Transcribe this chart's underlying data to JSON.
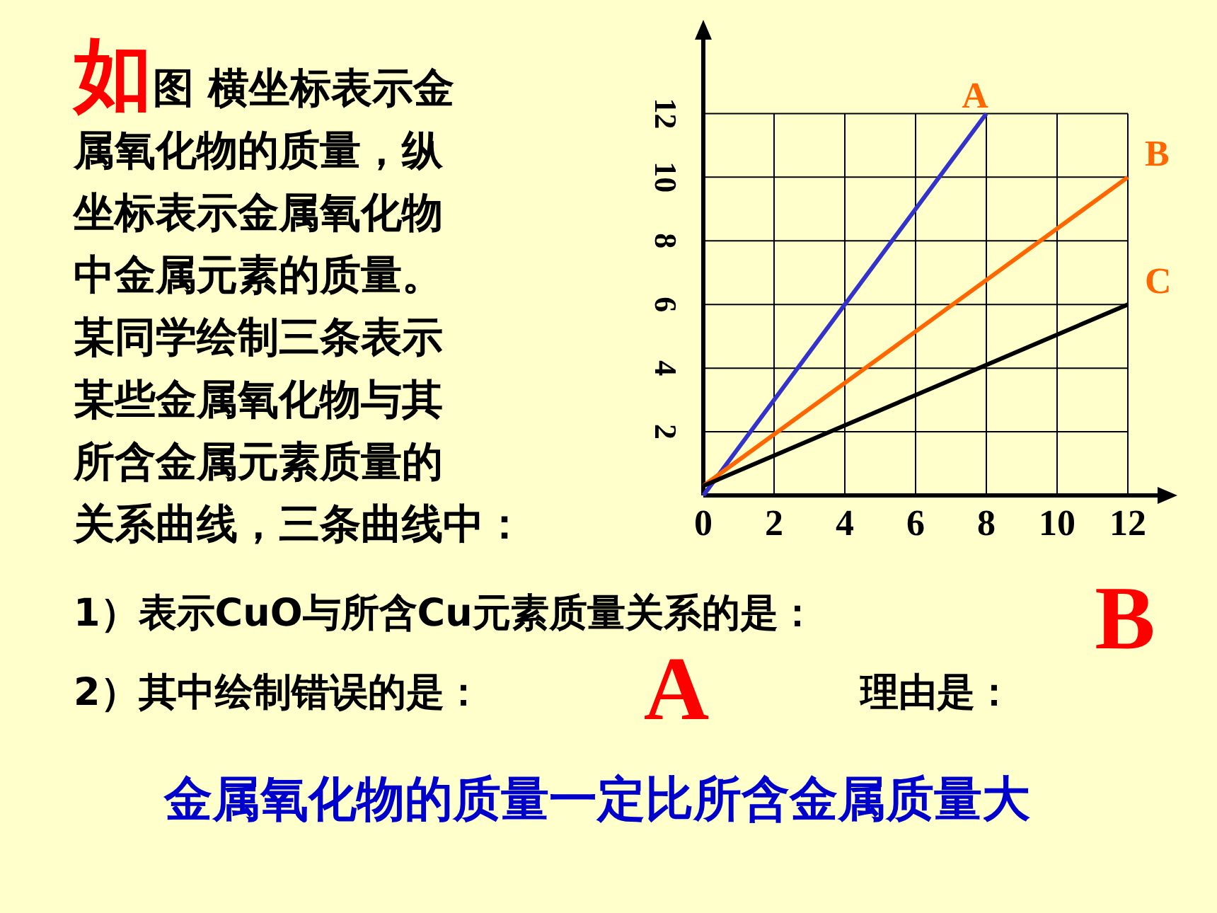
{
  "chart_data": {
    "type": "line",
    "annotations": [
      "如图 横坐标表示金属氧化物的质量，纵坐标表示金属氧化物中金属元素的质量。某同学绘制三条表示某些金属氧化物与其所含金属元素质量的关系曲线，三条曲线中：",
      "1）表示CuO与所含Cu元素质量关系的是：",
      "B",
      "2）其中绘制错误的是：",
      "A",
      "理由是：",
      "金属氧化物的质量一定比所含金属质量大"
    ],
    "series": [
      {
        "name": "A",
        "color": "#3333cc",
        "x": [
          0,
          8
        ],
        "values": [
          0,
          12
        ]
      },
      {
        "name": "B",
        "color": "#ff6600",
        "x": [
          0,
          12
        ],
        "values": [
          0.3,
          10
        ]
      },
      {
        "name": "C",
        "color": "#000000",
        "x": [
          0,
          12
        ],
        "values": [
          0.3,
          6
        ]
      }
    ],
    "xlim": [
      0,
      13
    ],
    "ylim": [
      0,
      14.5
    ],
    "xticks": [
      0,
      2,
      4,
      6,
      8,
      10,
      12
    ],
    "yticks": [
      {
        "value": 0,
        "label": null
      },
      2,
      4,
      6,
      8,
      10,
      12
    ],
    "grid": true,
    "marker": "none",
    "line_style": "solid"
  }
}
